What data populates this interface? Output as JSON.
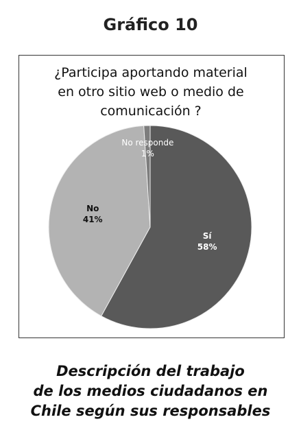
{
  "header": "Gráfico 10",
  "chart_data": {
    "type": "pie",
    "title": [
      "¿Participa aportando material",
      "en otro sitio web o medio de",
      "comunicación ?"
    ],
    "categories": [
      "Sí",
      "No",
      "No responde"
    ],
    "values": [
      58,
      41,
      1
    ],
    "value_labels": [
      "58%",
      "41%",
      "1%"
    ],
    "colors": [
      "#595959",
      "#b3b3b3",
      "#7d7d7d"
    ]
  },
  "caption": [
    "Descripción del trabajo",
    "de los medios ciudadanos en",
    "Chile según sus responsables"
  ]
}
